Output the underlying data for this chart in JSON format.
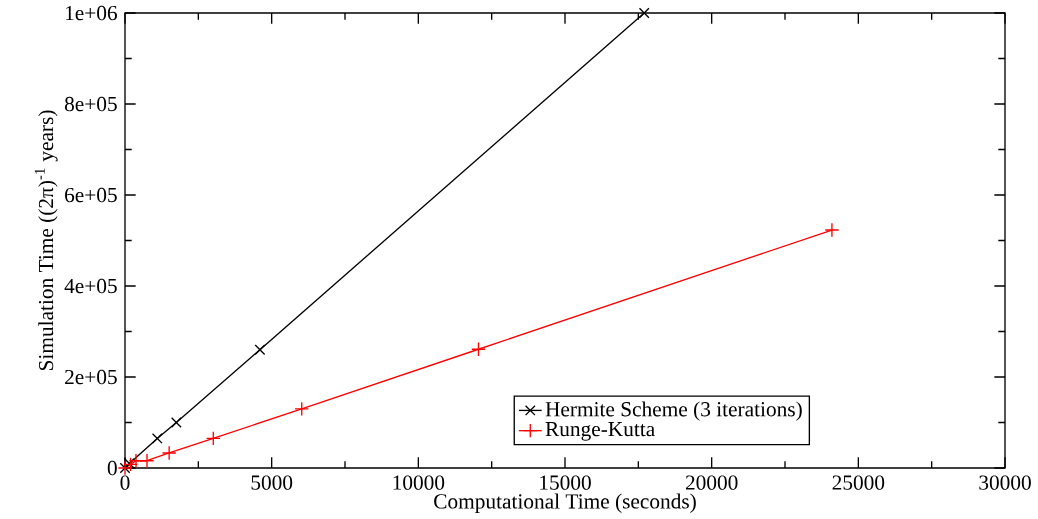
{
  "chart_data": {
    "type": "line",
    "xlabel": "Computational Time (seconds)",
    "ylabel": "Simulation Time ((2π)$^{-1}$ years)",
    "xlim": [
      0,
      30000
    ],
    "ylim": [
      0,
      1000000
    ],
    "xticks": [
      0,
      5000,
      10000,
      15000,
      20000,
      25000,
      30000
    ],
    "yticks": [
      {
        "value": 0,
        "label": "0"
      },
      {
        "value": 200000,
        "label": "2e+05"
      },
      {
        "value": 400000,
        "label": "4e+05"
      },
      {
        "value": 600000,
        "label": "6e+05"
      },
      {
        "value": 800000,
        "label": "8e+05"
      },
      {
        "value": 1000000,
        "label": "1e+06"
      }
    ],
    "grid": false,
    "legend": "bottom",
    "line_style": "solid",
    "series": [
      {
        "name": "Hermite Scheme (3 iterations)",
        "color": "#000000",
        "marker": "cross",
        "x": [
          0,
          150,
          1100,
          1750,
          4600,
          17700
        ],
        "values": [
          0,
          10000,
          65000,
          100000,
          260000,
          1000000
        ]
      },
      {
        "name": "Runge-Kutta",
        "color": "#ff0000",
        "marker": "plus",
        "x": [
          0,
          190,
          375,
          750,
          1505,
          3010,
          6025,
          12050,
          24100
        ],
        "values": [
          0,
          8000,
          16000,
          16000,
          33000,
          65000,
          130000,
          261000,
          523000
        ]
      }
    ]
  }
}
